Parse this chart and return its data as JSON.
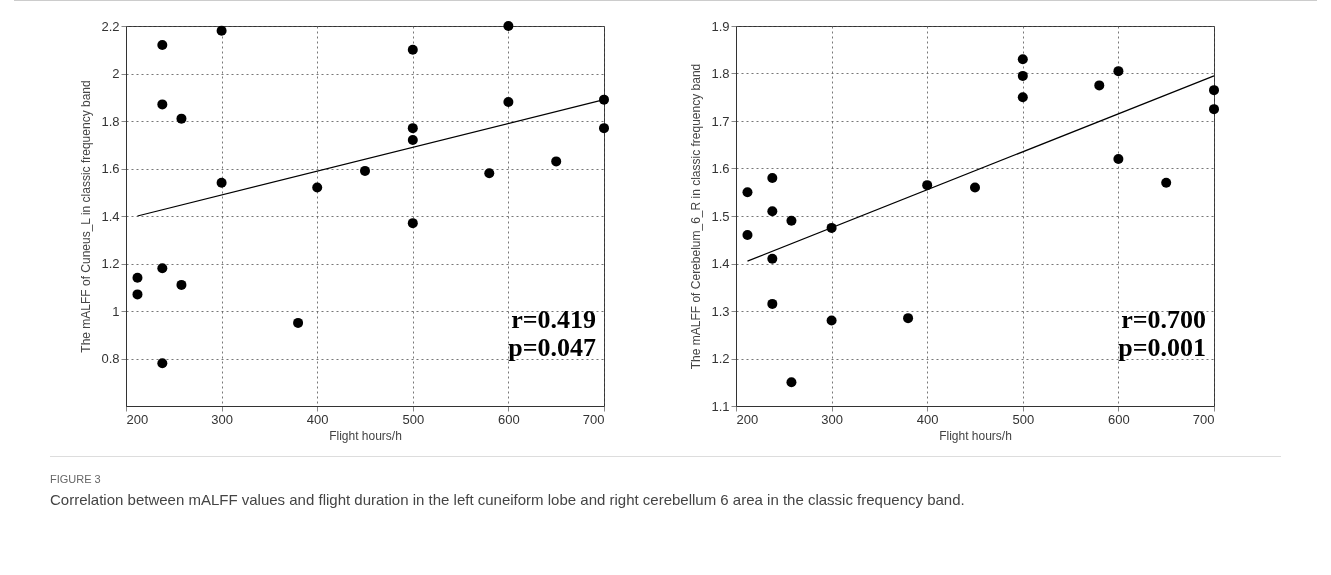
{
  "chart_data": [
    {
      "type": "scatter",
      "xlabel": "Flight hours/h",
      "ylabel": "The mALFF of Cuneus_L in classic frequency band",
      "xlim": [
        200,
        700
      ],
      "xticks": [
        200,
        300,
        400,
        500,
        600,
        700
      ],
      "ylim": [
        0.6,
        2.2
      ],
      "yticks": [
        0.8,
        1,
        1.2,
        1.4,
        1.6,
        1.8,
        2,
        2.2
      ],
      "grid": true,
      "series": [
        {
          "type": "scatter",
          "marker": "circle",
          "color": "#000000",
          "x": [
            212,
            212,
            238,
            238,
            238,
            238,
            258,
            258,
            300,
            300,
            380,
            400,
            450,
            500,
            500,
            500,
            500,
            580,
            600,
            600,
            650,
            700,
            700
          ],
          "values": [
            1.14,
            1.07,
            2.12,
            1.87,
            1.18,
            0.78,
            1.81,
            1.11,
            2.18,
            1.54,
            0.95,
            1.52,
            1.59,
            2.1,
            1.77,
            1.72,
            1.37,
            1.58,
            2.2,
            1.88,
            1.63,
            1.89,
            1.77
          ]
        },
        {
          "type": "line",
          "marker": "none",
          "color": "#000000",
          "x": [
            212,
            700
          ],
          "values": [
            1.4,
            1.89
          ]
        }
      ],
      "annotations": [
        "r=0.419",
        "p=0.047"
      ]
    },
    {
      "type": "scatter",
      "xlabel": "Flight hours/h",
      "ylabel": "The mALFF of Cerebelum_6_R in classic frequency band",
      "xlim": [
        200,
        700
      ],
      "xticks": [
        200,
        300,
        400,
        500,
        600,
        700
      ],
      "ylim": [
        1.1,
        1.9
      ],
      "yticks": [
        1.1,
        1.2,
        1.3,
        1.4,
        1.5,
        1.6,
        1.7,
        1.8,
        1.9
      ],
      "grid": true,
      "series": [
        {
          "type": "scatter",
          "marker": "circle",
          "color": "#000000",
          "x": [
            212,
            212,
            238,
            238,
            238,
            238,
            258,
            258,
            300,
            300,
            380,
            400,
            450,
            500,
            500,
            500,
            580,
            600,
            600,
            650,
            700,
            700
          ],
          "values": [
            1.55,
            1.46,
            1.58,
            1.51,
            1.41,
            1.315,
            1.49,
            1.15,
            1.475,
            1.28,
            1.285,
            1.565,
            1.56,
            1.83,
            1.795,
            1.75,
            1.775,
            1.805,
            1.62,
            1.57,
            1.765,
            1.725
          ]
        },
        {
          "type": "line",
          "marker": "none",
          "color": "#000000",
          "x": [
            212,
            700
          ],
          "values": [
            1.405,
            1.795
          ]
        }
      ],
      "annotations": [
        "r=0.700",
        "p=0.001",
        "FIGURE 3",
        "Correlation between mALFF values and flight duration in the left cuneiform lobe and right cerebellum 6 area in the classic frequency band."
      ]
    }
  ]
}
